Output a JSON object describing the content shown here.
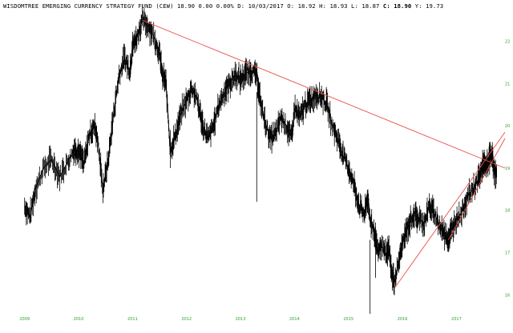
{
  "header": {
    "name": "WISDOMTREE EMERGING CURRENCY STRATEGY FUND (CEW)",
    "last": "18.90",
    "change": "0.00",
    "change_pct": "0.00%",
    "d_label": "D:",
    "date": "10/03/2017",
    "o_label": "O:",
    "open": "18.92",
    "h_label": "H:",
    "high": "18.93",
    "l_label": "L:",
    "low": "18.87",
    "c_label": "C:",
    "close": "18.90",
    "y_label": "Y:",
    "y": "19.73"
  },
  "colors": {
    "price": "#000000",
    "trendline": "#e8504a",
    "ticks": "#2e9e2e"
  },
  "chart_data": {
    "type": "line",
    "style": "ohlc-bars",
    "title": "",
    "xlabel": "",
    "ylabel": "",
    "x_ticks": [
      "2009",
      "2010",
      "2011",
      "2012",
      "2013",
      "2014",
      "2015",
      "2016",
      "2017"
    ],
    "y_ticks": [
      "16",
      "17",
      "18",
      "19",
      "20",
      "21",
      "22"
    ],
    "xlim": [
      2008.9,
      2017.9
    ],
    "ylim": [
      15.55,
      22.6
    ],
    "grid": false,
    "series": [
      {
        "values": [
          [
            2009.0,
            18.1
          ],
          [
            2009.1,
            17.85
          ],
          [
            2009.2,
            18.5
          ],
          [
            2009.35,
            19.0
          ],
          [
            2009.5,
            19.2
          ],
          [
            2009.65,
            18.8
          ],
          [
            2009.8,
            19.15
          ],
          [
            2009.92,
            19.45
          ],
          [
            2010.0,
            19.4
          ],
          [
            2010.1,
            19.1
          ],
          [
            2010.2,
            19.8
          ],
          [
            2010.3,
            20.0
          ],
          [
            2010.35,
            19.7
          ],
          [
            2010.45,
            18.5
          ],
          [
            2010.55,
            19.2
          ],
          [
            2010.65,
            20.3
          ],
          [
            2010.75,
            21.2
          ],
          [
            2010.85,
            21.6
          ],
          [
            2010.95,
            21.3
          ],
          [
            2011.0,
            21.9
          ],
          [
            2011.08,
            22.1
          ],
          [
            2011.18,
            22.5
          ],
          [
            2011.3,
            22.35
          ],
          [
            2011.4,
            22.1
          ],
          [
            2011.5,
            21.7
          ],
          [
            2011.55,
            21.2
          ],
          [
            2011.62,
            21.0
          ],
          [
            2011.7,
            19.4
          ],
          [
            2011.8,
            19.8
          ],
          [
            2011.9,
            20.3
          ],
          [
            2012.0,
            20.6
          ],
          [
            2012.1,
            20.9
          ],
          [
            2012.2,
            20.6
          ],
          [
            2012.3,
            20.0
          ],
          [
            2012.4,
            19.7
          ],
          [
            2012.5,
            20.0
          ],
          [
            2012.6,
            20.5
          ],
          [
            2012.7,
            20.8
          ],
          [
            2012.8,
            21.0
          ],
          [
            2012.9,
            21.2
          ],
          [
            2013.0,
            21.1
          ],
          [
            2013.1,
            21.25
          ],
          [
            2013.2,
            21.3
          ],
          [
            2013.3,
            21.2
          ],
          [
            2013.35,
            20.7
          ],
          [
            2013.45,
            20.1
          ],
          [
            2013.55,
            19.7
          ],
          [
            2013.65,
            19.8
          ],
          [
            2013.75,
            20.2
          ],
          [
            2013.85,
            20.0
          ],
          [
            2013.95,
            19.7
          ],
          [
            2014.0,
            20.4
          ],
          [
            2014.1,
            20.2
          ],
          [
            2014.2,
            20.5
          ],
          [
            2014.3,
            20.6
          ],
          [
            2014.4,
            20.75
          ],
          [
            2014.5,
            20.7
          ],
          [
            2014.6,
            20.5
          ],
          [
            2014.7,
            20.0
          ],
          [
            2014.8,
            19.7
          ],
          [
            2014.9,
            19.3
          ],
          [
            2015.0,
            19.0
          ],
          [
            2015.1,
            18.6
          ],
          [
            2015.2,
            18.1
          ],
          [
            2015.3,
            17.9
          ],
          [
            2015.35,
            18.3
          ],
          [
            2015.4,
            17.8
          ],
          [
            2015.5,
            17.4
          ],
          [
            2015.55,
            17.0
          ],
          [
            2015.6,
            17.2
          ],
          [
            2015.7,
            16.9
          ],
          [
            2015.75,
            17.1
          ],
          [
            2015.8,
            16.5
          ],
          [
            2015.85,
            16.3
          ],
          [
            2015.95,
            16.9
          ],
          [
            2016.0,
            17.2
          ],
          [
            2016.1,
            17.6
          ],
          [
            2016.2,
            17.9
          ],
          [
            2016.3,
            17.8
          ],
          [
            2016.4,
            17.7
          ],
          [
            2016.5,
            18.1
          ],
          [
            2016.6,
            17.9
          ],
          [
            2016.7,
            17.6
          ],
          [
            2016.8,
            17.4
          ],
          [
            2016.85,
            17.3
          ],
          [
            2016.9,
            17.5
          ],
          [
            2017.0,
            17.8
          ],
          [
            2017.1,
            17.95
          ],
          [
            2017.2,
            18.3
          ],
          [
            2017.3,
            18.5
          ],
          [
            2017.4,
            18.7
          ],
          [
            2017.45,
            18.9
          ],
          [
            2017.5,
            19.1
          ],
          [
            2017.55,
            19.0
          ],
          [
            2017.6,
            19.2
          ],
          [
            2017.65,
            19.35
          ],
          [
            2017.7,
            18.9
          ],
          [
            2017.75,
            18.9
          ]
        ]
      }
    ],
    "trendlines": [
      {
        "from": [
          2011.18,
          22.5
        ],
        "to": [
          2017.9,
          19.0
        ]
      },
      {
        "from": [
          2015.85,
          16.15
        ],
        "to": [
          2017.9,
          19.85
        ]
      },
      {
        "from": [
          2016.85,
          17.3
        ],
        "to": [
          2017.9,
          19.7
        ]
      }
    ]
  }
}
